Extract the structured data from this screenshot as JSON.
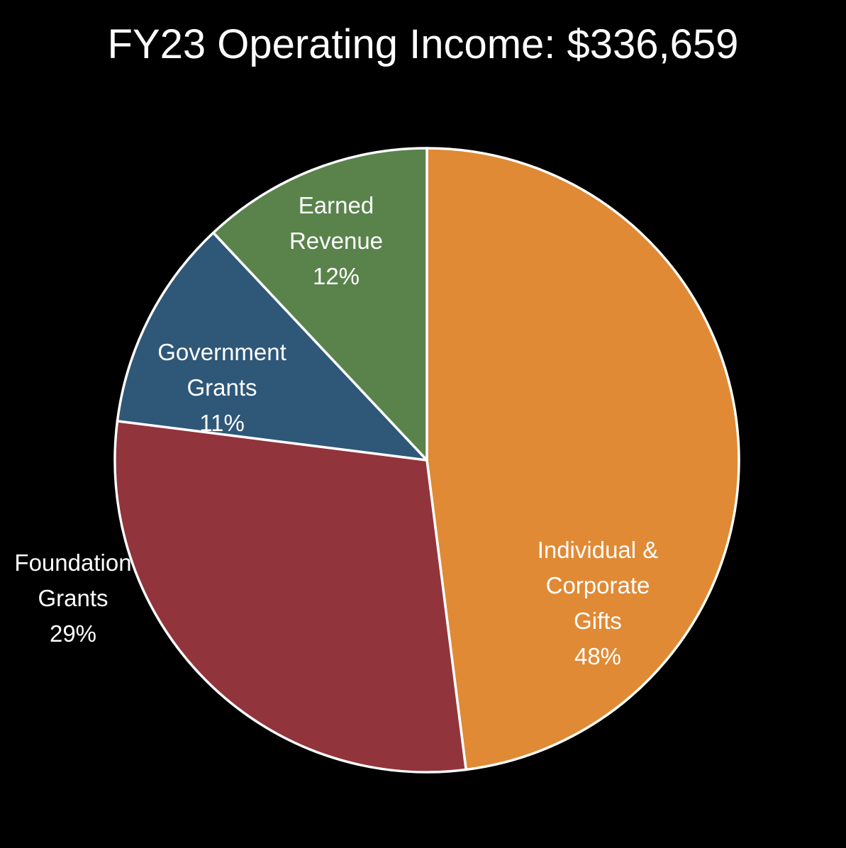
{
  "chart_data": {
    "type": "pie",
    "title": "FY23 Operating Income: $336,659",
    "slices": [
      {
        "label_lines": [
          "Individual &",
          "Corporate",
          "Gifts"
        ],
        "percent_label": "48%",
        "value": 48,
        "color": "#E08A35"
      },
      {
        "label_lines": [
          "Foundation",
          "Grants"
        ],
        "percent_label": "29%",
        "value": 29,
        "color": "#92343C"
      },
      {
        "label_lines": [
          "Government",
          "Grants"
        ],
        "percent_label": "11%",
        "value": 11,
        "color": "#2E5778"
      },
      {
        "label_lines": [
          "Earned",
          "Revenue"
        ],
        "percent_label": "12%",
        "value": 12,
        "color": "#5A834C"
      }
    ],
    "start_angle": "12 o'clock",
    "direction": "clockwise",
    "legend": "none",
    "slice_border_color": "#FFFFFF"
  }
}
